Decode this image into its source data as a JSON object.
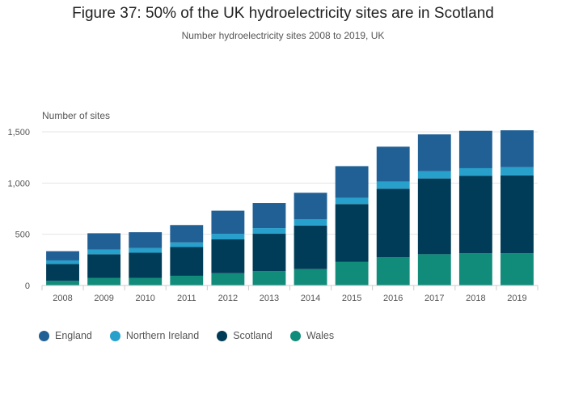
{
  "chart_data": {
    "type": "bar",
    "stacked": true,
    "title": "Figure 37: 50% of the UK hydroelectricity sites are in Scotland",
    "subtitle": "Number hydroelectricity sites 2008 to 2019, UK",
    "ylabel": "Number of sites",
    "xlabel": "",
    "ylim": [
      0,
      1500
    ],
    "yticks": [
      0,
      500,
      1000,
      1500
    ],
    "ytick_labels": [
      "0",
      "500",
      "1,000",
      "1,500"
    ],
    "grid": true,
    "legend_position": "bottom-left",
    "categories": [
      "2008",
      "2009",
      "2010",
      "2011",
      "2012",
      "2013",
      "2014",
      "2015",
      "2016",
      "2017",
      "2018",
      "2019"
    ],
    "series": [
      {
        "name": "Wales",
        "color": "#118c7b",
        "values": [
          45,
          75,
          75,
          95,
          120,
          140,
          160,
          230,
          275,
          305,
          315,
          315
        ]
      },
      {
        "name": "Scotland",
        "color": "#003c57",
        "values": [
          165,
          230,
          245,
          280,
          330,
          365,
          425,
          565,
          670,
          740,
          755,
          760
        ]
      },
      {
        "name": "Northern Ireland",
        "color": "#27a0cc",
        "values": [
          35,
          45,
          45,
          45,
          55,
          55,
          60,
          60,
          70,
          70,
          75,
          80
        ]
      },
      {
        "name": "England",
        "color": "#206095",
        "values": [
          90,
          160,
          155,
          170,
          225,
          245,
          260,
          310,
          340,
          360,
          365,
          360
        ]
      }
    ]
  }
}
